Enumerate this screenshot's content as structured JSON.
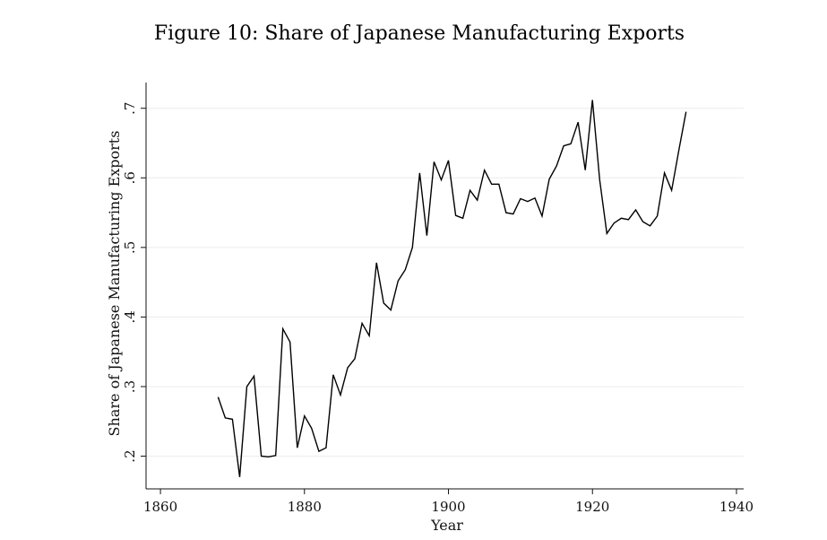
{
  "chart_data": {
    "type": "line",
    "title": "Figure 10: Share of Japanese Manufacturing Exports",
    "xlabel": "Year",
    "ylabel": "Share of Japanese Manufacturing Exports",
    "xlim": [
      1858,
      1941
    ],
    "ylim": [
      0.153,
      0.737
    ],
    "xticks": [
      1860,
      1880,
      1900,
      1920,
      1940
    ],
    "xtick_labels": [
      "1860",
      "1880",
      "1900",
      "1920",
      "1940"
    ],
    "yticks": [
      0.2,
      0.3,
      0.4,
      0.5,
      0.6,
      0.7
    ],
    "ytick_labels": [
      ".2",
      ".3",
      ".4",
      ".5",
      ".6",
      ".7"
    ],
    "grid": true,
    "series": [
      {
        "x": [
          1868,
          1869,
          1870,
          1871,
          1872,
          1873,
          1874,
          1875,
          1876,
          1877,
          1878,
          1879,
          1880,
          1881,
          1882,
          1883,
          1884,
          1885,
          1886,
          1887,
          1888,
          1889,
          1890,
          1891,
          1892,
          1893,
          1894,
          1895,
          1896,
          1897,
          1898,
          1899,
          1900,
          1901,
          1902,
          1903,
          1904,
          1905,
          1906,
          1907,
          1908,
          1909,
          1910,
          1911,
          1912,
          1913,
          1914,
          1915,
          1916,
          1917,
          1918,
          1919,
          1920,
          1921,
          1922,
          1923,
          1924,
          1925,
          1926,
          1927,
          1928,
          1929,
          1930,
          1931,
          1932,
          1933
        ],
        "y": [
          0.285,
          0.255,
          0.253,
          0.17,
          0.3,
          0.315,
          0.2,
          0.199,
          0.201,
          0.383,
          0.364,
          0.212,
          0.258,
          0.24,
          0.207,
          0.212,
          0.317,
          0.288,
          0.327,
          0.34,
          0.391,
          0.373,
          0.478,
          0.42,
          0.41,
          0.452,
          0.468,
          0.5,
          0.607,
          0.517,
          0.623,
          0.597,
          0.625,
          0.546,
          0.542,
          0.582,
          0.568,
          0.611,
          0.591,
          0.591,
          0.55,
          0.548,
          0.57,
          0.566,
          0.571,
          0.545,
          0.598,
          0.617,
          0.646,
          0.649,
          0.68,
          0.611,
          0.712,
          0.597,
          0.52,
          0.535,
          0.542,
          0.54,
          0.554,
          0.537,
          0.531,
          0.545,
          0.607,
          0.582,
          0.64,
          0.695
        ]
      }
    ]
  }
}
